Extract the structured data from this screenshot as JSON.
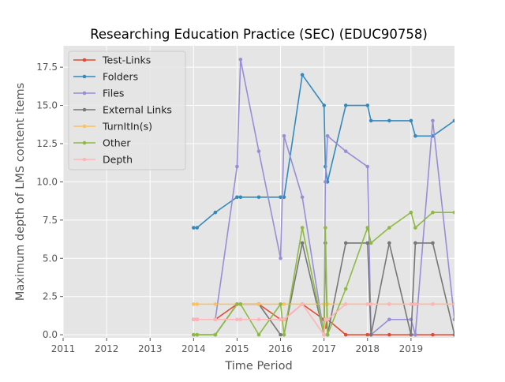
{
  "chart_data": {
    "type": "line",
    "title": "Researching Education Practice (SEC) (EDUC90758)",
    "xlabel": "Time Period",
    "ylabel": "Maximum depth of LMS content items",
    "xlim": [
      2011,
      2020
    ],
    "ylim": [
      -0.2,
      18.9
    ],
    "x_ticks": [
      2011,
      2012,
      2013,
      2014,
      2015,
      2016,
      2017,
      2018,
      2019
    ],
    "x_tick_labels": [
      "2011",
      "2012",
      "2013",
      "2014",
      "2015",
      "2016",
      "2017",
      "2018",
      "2019"
    ],
    "y_ticks": [
      0,
      2.5,
      5,
      7.5,
      10,
      12.5,
      15,
      17.5
    ],
    "y_tick_labels": [
      "0.0",
      "2.5",
      "5.0",
      "7.5",
      "10.0",
      "12.5",
      "15.0",
      "17.5"
    ],
    "grid": true,
    "legend_position": "upper-left",
    "style": {
      "plot_bg": "#e5e5e5",
      "grid_color": "#ffffff",
      "text_color": "#555555",
      "title_color": "#000000"
    },
    "x": [
      2014.0,
      2014.08,
      2014.5,
      2015.0,
      2015.08,
      2015.5,
      2016.0,
      2016.08,
      2016.5,
      2017.0,
      2017.03,
      2017.08,
      2017.5,
      2018.0,
      2018.08,
      2018.5,
      2019.0,
      2019.1,
      2019.5,
      2020.0
    ],
    "series": [
      {
        "name": "Test-Links",
        "color": "#e24a33",
        "values": [
          1,
          1,
          1,
          2,
          2,
          2,
          1,
          1,
          2,
          1,
          0.5,
          1,
          0,
          0,
          0,
          0,
          0,
          0,
          0,
          0
        ]
      },
      {
        "name": "Folders",
        "color": "#348abd",
        "values": [
          7,
          7,
          8,
          9,
          9,
          9,
          9,
          9,
          17,
          15,
          11,
          10,
          15,
          15,
          14,
          14,
          14,
          13,
          13,
          14
        ]
      },
      {
        "name": "Files",
        "color": "#988ed5",
        "values": [
          1,
          1,
          1,
          11,
          18,
          12,
          5,
          13,
          9,
          0,
          10,
          13,
          12,
          11,
          0,
          1,
          1,
          0,
          14,
          1
        ]
      },
      {
        "name": "External Links",
        "color": "#777777",
        "values": [
          0,
          0,
          0,
          2,
          2,
          2,
          0,
          0,
          6,
          0,
          6,
          0,
          6,
          6,
          0,
          6,
          0,
          6,
          6,
          0
        ]
      },
      {
        "name": "TurnItIn(s)",
        "color": "#fbc15e",
        "values": [
          2,
          2,
          2,
          2,
          2,
          2,
          2,
          2,
          2,
          2,
          2,
          2,
          2,
          2,
          2,
          2,
          2,
          2,
          2,
          2
        ]
      },
      {
        "name": "Other",
        "color": "#8eba42",
        "values": [
          0,
          0,
          0,
          2,
          2,
          0,
          2,
          0,
          7,
          0,
          7,
          0,
          3,
          7,
          6,
          7,
          8,
          7,
          8,
          8
        ]
      },
      {
        "name": "Depth",
        "color": "#ffb5b8",
        "values": [
          1,
          1,
          1,
          1,
          1,
          1,
          1,
          1,
          2,
          0,
          1,
          1,
          2,
          2,
          2,
          2,
          2,
          2,
          2,
          2
        ]
      }
    ]
  }
}
